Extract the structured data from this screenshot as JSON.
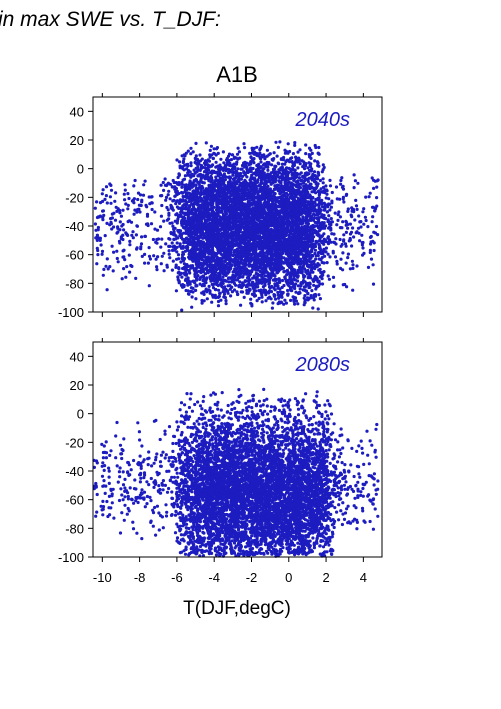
{
  "header": {
    "text": "in max SWE vs. T_DJF:"
  },
  "figure_title": "A1B",
  "colors": {
    "points": "#1c1cc0",
    "annotation": "#1c1cc0",
    "axis": "#000000"
  },
  "chart_data": [
    {
      "type": "scatter",
      "annotation": "2040s",
      "xlabel": "",
      "ylabel": "",
      "xlim": [
        -10.5,
        5.0
      ],
      "ylim": [
        -100,
        50
      ],
      "yticks": [
        40,
        20,
        0,
        -20,
        -40,
        -60,
        -80,
        -100
      ],
      "grid": false,
      "cloud": {
        "core_x": [
          -5.5,
          1.5
        ],
        "x_extent": [
          -10.4,
          4.8
        ],
        "top": [
          8,
          20
        ],
        "bottom": [
          -90,
          -100
        ],
        "y_center": -40
      }
    },
    {
      "type": "scatter",
      "annotation": "2080s",
      "xlabel": "T(DJF,degC)",
      "ylabel": "",
      "xlim": [
        -10.5,
        5.0
      ],
      "ylim": [
        -100,
        50
      ],
      "xticks": [
        -10,
        -8,
        -6,
        -4,
        -2,
        0,
        2,
        4
      ],
      "yticks": [
        40,
        20,
        0,
        -20,
        -40,
        -60,
        -80,
        -100
      ],
      "grid": false,
      "cloud": {
        "core_x": [
          -5.5,
          2.0
        ],
        "x_extent": [
          -10.5,
          4.8
        ],
        "top": [
          10,
          18
        ],
        "bottom": [
          -98,
          -100
        ],
        "y_center": -55
      }
    }
  ]
}
